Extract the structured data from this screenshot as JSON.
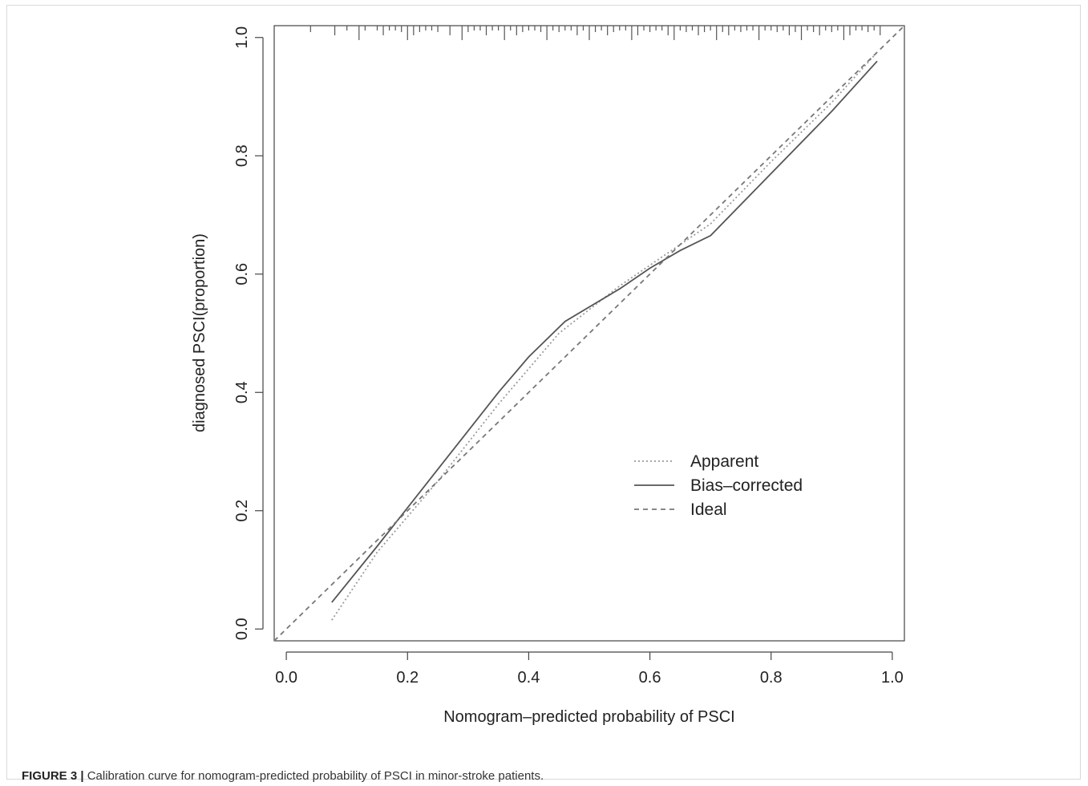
{
  "caption": {
    "label": "FIGURE 3 |",
    "text": "Calibration curve for nomogram-predicted probability of PSCI in minor-stroke patients."
  },
  "chart_data": {
    "type": "line",
    "xlabel": "Nomogram–predicted probability of PSCI",
    "ylabel": "diagnosed PSCI(proportion)",
    "xlim": [
      -0.02,
      1.02
    ],
    "ylim": [
      -0.02,
      1.02
    ],
    "xticks": [
      "0.0",
      "0.2",
      "0.4",
      "0.6",
      "0.8",
      "1.0"
    ],
    "yticks": [
      "0.0",
      "0.2",
      "0.4",
      "0.6",
      "0.8",
      "1.0"
    ],
    "legend": {
      "position": "lower-right",
      "entries": [
        "Apparent",
        "Bias–corrected",
        "Ideal"
      ]
    },
    "series": [
      {
        "name": "Apparent",
        "style": "dotted",
        "color": "#9a9a9a",
        "x": [
          0.075,
          0.15,
          0.25,
          0.35,
          0.45,
          0.55,
          0.6,
          0.7,
          0.8,
          0.9,
          0.975
        ],
        "y": [
          0.015,
          0.13,
          0.25,
          0.38,
          0.5,
          0.58,
          0.615,
          0.685,
          0.79,
          0.89,
          0.975
        ]
      },
      {
        "name": "Bias–corrected",
        "style": "solid",
        "color": "#555555",
        "x": [
          0.075,
          0.15,
          0.25,
          0.35,
          0.4,
          0.46,
          0.55,
          0.6,
          0.65,
          0.7,
          0.8,
          0.9,
          0.975
        ],
        "y": [
          0.045,
          0.14,
          0.27,
          0.4,
          0.46,
          0.52,
          0.575,
          0.61,
          0.64,
          0.665,
          0.77,
          0.875,
          0.96
        ]
      },
      {
        "name": "Ideal",
        "style": "dashed",
        "color": "#777777",
        "x": [
          -0.02,
          1.02
        ],
        "y": [
          -0.02,
          1.02
        ]
      }
    ],
    "rug": [
      0.04,
      0.08,
      0.1,
      0.12,
      0.13,
      0.15,
      0.16,
      0.17,
      0.18,
      0.19,
      0.2,
      0.21,
      0.22,
      0.23,
      0.24,
      0.25,
      0.27,
      0.29,
      0.3,
      0.31,
      0.32,
      0.33,
      0.34,
      0.35,
      0.36,
      0.37,
      0.38,
      0.39,
      0.4,
      0.41,
      0.42,
      0.43,
      0.44,
      0.45,
      0.46,
      0.47,
      0.48,
      0.49,
      0.5,
      0.51,
      0.52,
      0.53,
      0.54,
      0.55,
      0.56,
      0.57,
      0.58,
      0.59,
      0.6,
      0.61,
      0.62,
      0.63,
      0.64,
      0.65,
      0.66,
      0.67,
      0.68,
      0.69,
      0.7,
      0.71,
      0.72,
      0.73,
      0.74,
      0.75,
      0.76,
      0.77,
      0.78,
      0.79,
      0.8,
      0.81,
      0.82,
      0.83,
      0.84,
      0.85,
      0.86,
      0.87,
      0.88,
      0.89,
      0.9,
      0.91,
      0.92,
      0.93,
      0.94,
      0.95,
      0.96,
      0.97,
      0.98
    ],
    "grid": false
  }
}
